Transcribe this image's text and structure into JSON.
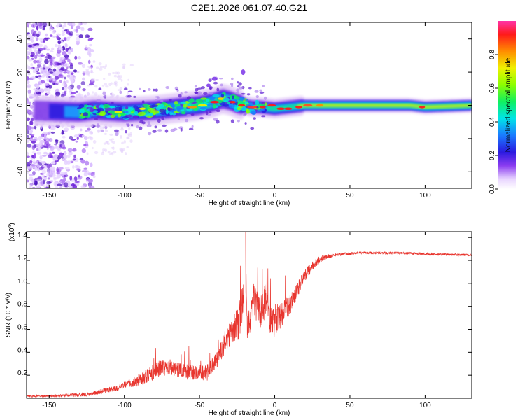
{
  "figure_title": "C2E1.2026.061.07.40.G21",
  "chart_data": [
    {
      "type": "heatmap",
      "title": "C2E1.2026.061.07.40.G21",
      "xlabel": "Height of straight line (km)",
      "ylabel": "Frequency (Hz)",
      "xlim": [
        -165,
        131
      ],
      "ylim": [
        -50,
        50
      ],
      "xticks": [
        -150,
        -100,
        -50,
        0,
        50,
        100
      ],
      "xtick_labels": [
        "-150",
        "-100",
        "-50",
        "0",
        "50",
        "100"
      ],
      "yticks": [
        -40,
        -20,
        0,
        20,
        40
      ],
      "ytick_labels": [
        "-40",
        "-20",
        "0",
        "20",
        "40"
      ],
      "colorbar": {
        "label": "Normalized spectral amplitude",
        "range": [
          0,
          1
        ],
        "ticks": [
          0.0,
          0.2,
          0.4,
          0.6,
          0.8
        ],
        "tick_labels": [
          "0.0",
          "0.2",
          "0.4",
          "0.6",
          "0.8"
        ]
      },
      "ridge_center_freq": {
        "x": [
          -165,
          -130,
          -120,
          -100,
          -80,
          -60,
          -50,
          -40,
          -35,
          -30,
          -25,
          -20,
          -15,
          -10,
          0,
          10,
          20,
          50,
          90,
          100,
          131
        ],
        "y": [
          -3,
          -4,
          -3,
          -4,
          -3,
          -1,
          0,
          2,
          4,
          3,
          1,
          0,
          -1,
          -1,
          -2,
          -1,
          0,
          0,
          0,
          -1,
          0
        ]
      }
    },
    {
      "type": "line",
      "xlabel": "Height of straight line (km)",
      "ylabel": "SNR (10 * v/v)",
      "y_multiplier": "(x10",
      "y_multiplier_exp": "4",
      "y_multiplier_close": ")",
      "xlim": [
        -165,
        131
      ],
      "ylim": [
        0.0,
        1.45
      ],
      "xticks": [
        -150,
        -100,
        -50,
        0,
        50,
        100
      ],
      "xtick_labels": [
        "-150",
        "-100",
        "-50",
        "0",
        "50",
        "100"
      ],
      "yticks": [
        0.2,
        0.4,
        0.6,
        0.8,
        1.0,
        1.2,
        1.4
      ],
      "ytick_labels": [
        "0.2",
        "0.4",
        "0.6",
        "0.8",
        "1.0",
        "1.2",
        "1.4"
      ],
      "series": [
        {
          "name": "SNR",
          "color": "#e8352e",
          "envelope_x": [
            -165,
            -140,
            -125,
            -115,
            -105,
            -95,
            -85,
            -75,
            -65,
            -55,
            -45,
            -38,
            -32,
            -28,
            -24,
            -20,
            -18,
            -14,
            -10,
            -6,
            -2,
            2,
            6,
            10,
            14,
            18,
            22,
            26,
            30,
            35,
            45,
            60,
            80,
            100,
            131
          ],
          "envelope_y": [
            0.02,
            0.03,
            0.04,
            0.07,
            0.1,
            0.15,
            0.22,
            0.3,
            0.27,
            0.25,
            0.25,
            0.38,
            0.55,
            0.65,
            0.72,
            1.0,
            0.7,
            0.95,
            0.78,
            0.92,
            0.7,
            0.75,
            0.8,
            0.85,
            0.95,
            1.05,
            1.12,
            1.18,
            1.22,
            1.24,
            1.26,
            1.27,
            1.27,
            1.26,
            1.25
          ],
          "noise_x": [
            -165,
            -120,
            -100,
            -80,
            -60,
            -40,
            -30,
            -20,
            -10,
            0,
            10,
            20,
            30,
            40,
            131
          ],
          "noise_amp": [
            0.015,
            0.03,
            0.05,
            0.12,
            0.11,
            0.12,
            0.18,
            0.3,
            0.25,
            0.22,
            0.15,
            0.09,
            0.05,
            0.02,
            0.015
          ]
        }
      ]
    }
  ]
}
